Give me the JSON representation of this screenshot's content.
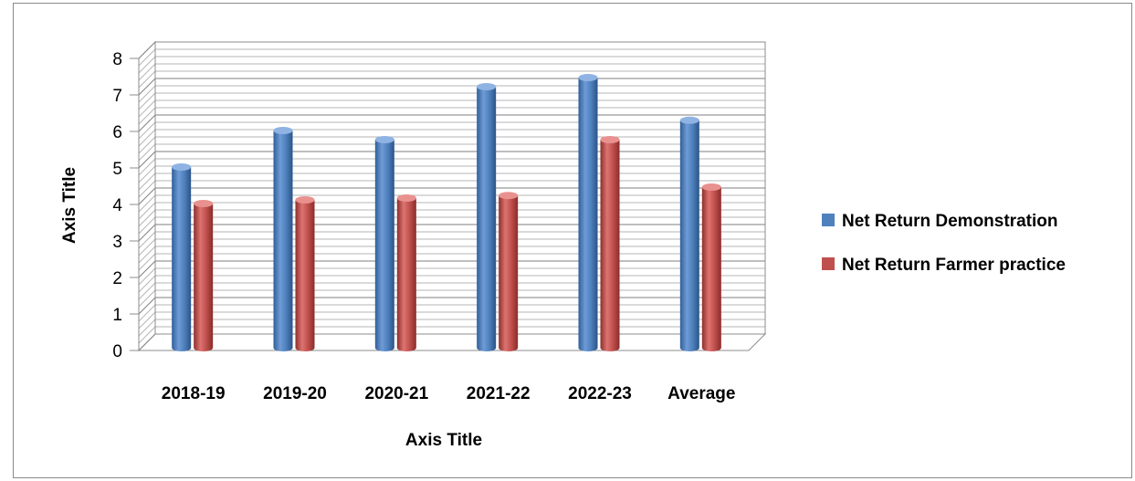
{
  "chart_data": {
    "type": "bar",
    "style": "3d-cylinder",
    "categories": [
      "2018-19",
      "2019-20",
      "2020-21",
      "2021-22",
      "2022-23",
      "Average"
    ],
    "series": [
      {
        "name": "Net Return Demonstration",
        "values": [
          5.0,
          6.0,
          5.75,
          7.2,
          7.45,
          6.28
        ],
        "color": "#4F81BD"
      },
      {
        "name": "Net Return Farmer practice",
        "values": [
          4.0,
          4.1,
          4.15,
          4.22,
          5.75,
          4.45
        ],
        "color": "#C0504D"
      }
    ],
    "xlabel": "Axis Title",
    "ylabel": "Axis Title",
    "ylim": [
      0,
      8
    ],
    "yticks": [
      0,
      1,
      2,
      3,
      4,
      5,
      6,
      7,
      8
    ],
    "grid": true,
    "legend_position": "right"
  }
}
